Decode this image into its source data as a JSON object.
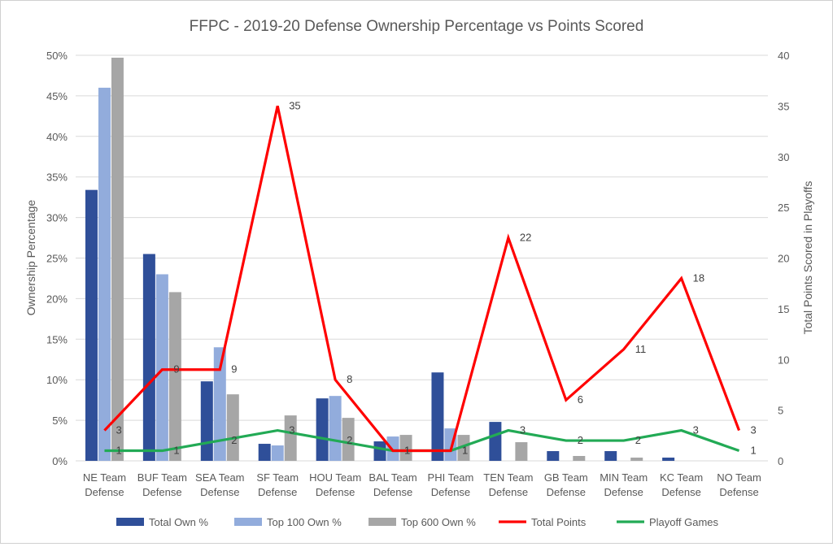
{
  "chart_data": {
    "type": "bar",
    "title": "FFPC - 2019-20 Defense Ownership Percentage vs Points Scored",
    "ylabel": "Ownership Percentage",
    "y2label": "Total Points Scored in Playoffs",
    "ylim": [
      0,
      50
    ],
    "y_ticks": [
      "0%",
      "5%",
      "10%",
      "15%",
      "20%",
      "25%",
      "30%",
      "35%",
      "40%",
      "45%",
      "50%"
    ],
    "y2lim": [
      0,
      40
    ],
    "y2_ticks": [
      "0",
      "5",
      "10",
      "15",
      "20",
      "25",
      "30",
      "35",
      "40"
    ],
    "categories": [
      [
        "NE Team",
        "Defense"
      ],
      [
        "BUF Team",
        "Defense"
      ],
      [
        "SEA Team",
        "Defense"
      ],
      [
        "SF Team",
        "Defense"
      ],
      [
        "HOU Team",
        "Defense"
      ],
      [
        "BAL Team",
        "Defense"
      ],
      [
        "PHI Team",
        "Defense"
      ],
      [
        "TEN Team",
        "Defense"
      ],
      [
        "GB Team",
        "Defense"
      ],
      [
        "MIN Team",
        "Defense"
      ],
      [
        "KC Team",
        "Defense"
      ],
      [
        "NO Team",
        "Defense"
      ]
    ],
    "series": [
      {
        "name": "Total Own %",
        "kind": "bar",
        "axis": "left",
        "color": "#2f4f99",
        "values": [
          33.4,
          25.5,
          9.8,
          2.1,
          7.7,
          2.4,
          10.9,
          4.8,
          1.2,
          1.2,
          0.4,
          0.0
        ]
      },
      {
        "name": "Top 100 Own %",
        "kind": "bar",
        "axis": "left",
        "color": "#92acdc",
        "values": [
          46.0,
          23.0,
          14.0,
          1.9,
          8.0,
          3.0,
          4.0,
          0.0,
          0.0,
          0.0,
          0.0,
          0.0
        ]
      },
      {
        "name": "Top 600 Own %",
        "kind": "bar",
        "axis": "left",
        "color": "#a6a6a6",
        "values": [
          49.7,
          20.8,
          8.2,
          5.6,
          5.3,
          3.2,
          3.2,
          2.3,
          0.6,
          0.4,
          0.0,
          0.0
        ]
      },
      {
        "name": "Total Points",
        "kind": "line",
        "axis": "right",
        "color": "#ff0000",
        "values": [
          3,
          9,
          9,
          35,
          8,
          1,
          1,
          22,
          6,
          11,
          18,
          3
        ]
      },
      {
        "name": "Playoff Games",
        "kind": "line",
        "axis": "right",
        "color": "#22aa55",
        "values": [
          1,
          1,
          2,
          3,
          2,
          1,
          1,
          3,
          2,
          2,
          3,
          1
        ]
      }
    ],
    "legend_position": "bottom",
    "grid": true
  }
}
